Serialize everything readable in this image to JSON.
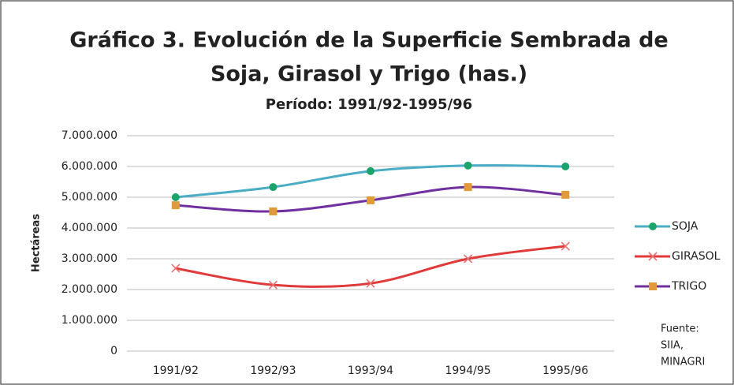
{
  "chart_data": {
    "type": "line",
    "title": [
      "Gráfico 3. Evolución de la Superficie Sembrada de",
      "Soja, Girasol y Trigo (has.)"
    ],
    "subtitle": "Período: 1991/92-1995/96",
    "y_label": "Hectáreas",
    "categories": [
      "1991/92",
      "1992/93",
      "1993/94",
      "1994/95",
      "1995/96"
    ],
    "series": [
      {
        "name": "SOJA",
        "color": "#4bacc6",
        "marker": "circle",
        "marker_color": "#1aa36a",
        "values": [
          5000000,
          5330000,
          5850000,
          6030000,
          6000000
        ]
      },
      {
        "name": "GIRASOL",
        "color": "#e03a3a",
        "marker": "x",
        "marker_color": "#e87070",
        "values": [
          2690000,
          2150000,
          2200000,
          3000000,
          3410000
        ]
      },
      {
        "name": "TRIGO",
        "color": "#7030a0",
        "marker": "square",
        "marker_color": "#e09a3a",
        "values": [
          4740000,
          4540000,
          4900000,
          5330000,
          5080000
        ]
      }
    ],
    "ylim": [
      0,
      7000000
    ],
    "yticks": [
      0,
      {
        "value": 1000000,
        "label": "1.000.000"
      },
      {
        "value": 2000000,
        "label": "2.000.000"
      },
      {
        "value": 3000000,
        "label": "3.000.000"
      },
      {
        "value": 4000000,
        "label": "4.000.000"
      },
      {
        "value": 5000000,
        "label": "5.000.000"
      },
      {
        "value": 6000000,
        "label": "6.000.000"
      },
      {
        "value": 7000000,
        "label": "7.000.000"
      }
    ],
    "grid": true,
    "smooth": true,
    "legend": "right",
    "source": [
      "Fuente:",
      "SIIA,",
      "MINAGRI"
    ]
  }
}
